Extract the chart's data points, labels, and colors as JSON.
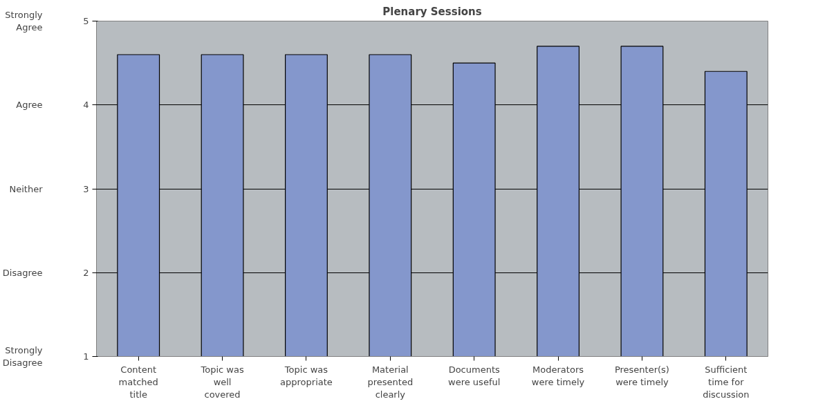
{
  "chart_data": {
    "type": "bar",
    "title": "Plenary Sessions",
    "categories": [
      "Content matched title",
      "Topic was well covered",
      "Topic was appropriate",
      "Material presented clearly",
      "Documents were useful",
      "Moderators were timely",
      "Presenter(s) were timely",
      "Sufficient time for discussion"
    ],
    "values": [
      4.6,
      4.6,
      4.6,
      4.6,
      4.5,
      4.7,
      4.7,
      4.4
    ],
    "color": "#8497cc",
    "ylim": [
      1,
      5
    ],
    "yticks": [
      1,
      2,
      3,
      4,
      5
    ],
    "annotations": [
      "Strongly Disagree",
      "Disagree",
      "Neither",
      "Agree",
      "Strongly Agree"
    ],
    "grid": "y"
  }
}
